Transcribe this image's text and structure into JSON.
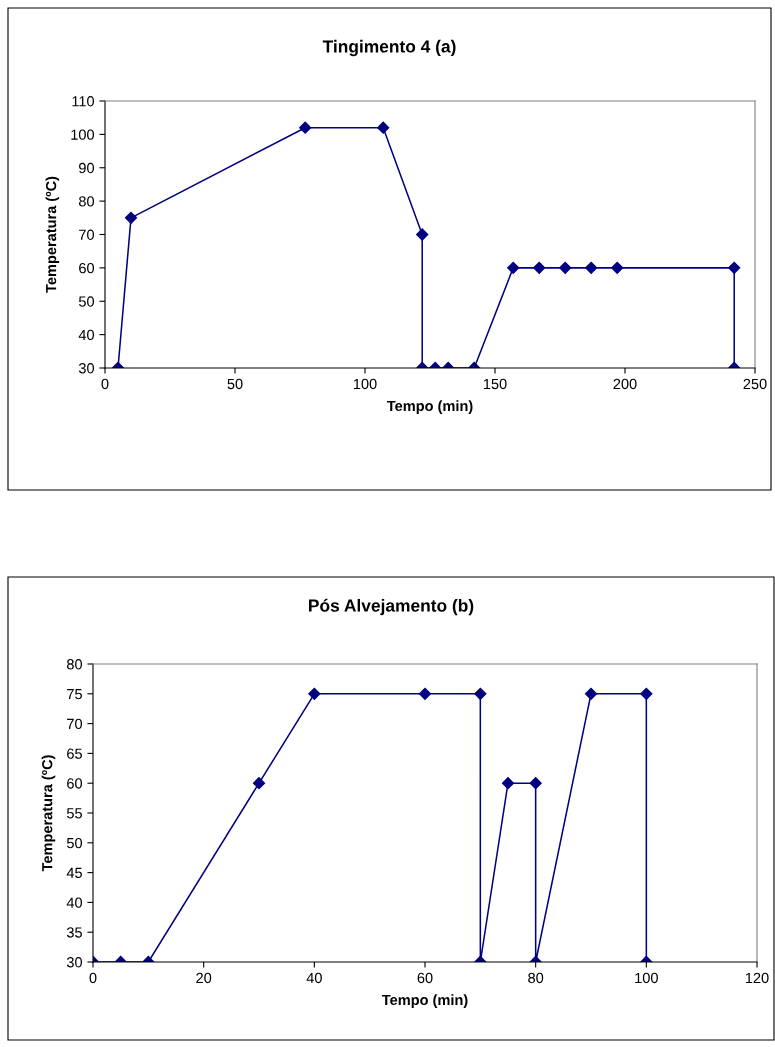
{
  "chart_data": [
    {
      "type": "line",
      "title": "Tingimento 4 (a)",
      "xlabel": "Tempo (min)",
      "ylabel": "Temperatura (ºC)",
      "series": [
        {
          "color": "#000080",
          "x": [
            5,
            10,
            77,
            107,
            122,
            122,
            127,
            132,
            142,
            157,
            167,
            177,
            187,
            197,
            242,
            242
          ],
          "values": [
            30,
            75,
            102,
            102,
            70,
            30,
            30,
            30,
            30,
            60,
            60,
            60,
            60,
            60,
            60,
            30
          ]
        }
      ],
      "xlim": [
        0,
        250
      ],
      "xticks": [
        0,
        50,
        100,
        150,
        200,
        250
      ],
      "ylim": [
        30,
        110
      ],
      "yticks": [
        30,
        40,
        50,
        60,
        70,
        80,
        90,
        100,
        110
      ],
      "marker": "diamond",
      "line_style": "solid",
      "grid": false,
      "legend": false
    },
    {
      "type": "line",
      "title": "Pós Alvejamento (b)",
      "xlabel": "Tempo (min)",
      "ylabel": "Temperatura (ºC)",
      "series": [
        {
          "color": "#000080",
          "x": [
            0,
            5,
            10,
            30,
            40,
            60,
            70,
            70,
            75,
            80,
            80,
            90,
            100,
            100
          ],
          "values": [
            30,
            30,
            30,
            60,
            75,
            75,
            75,
            30,
            60,
            60,
            30,
            75,
            75,
            30
          ]
        }
      ],
      "xlim": [
        0,
        120
      ],
      "xticks": [
        0,
        20,
        40,
        60,
        80,
        100,
        120
      ],
      "ylim": [
        30,
        80
      ],
      "yticks": [
        30,
        35,
        40,
        45,
        50,
        55,
        60,
        65,
        70,
        75,
        80
      ],
      "marker": "diamond",
      "line_style": "solid",
      "grid": false,
      "legend": false
    }
  ]
}
